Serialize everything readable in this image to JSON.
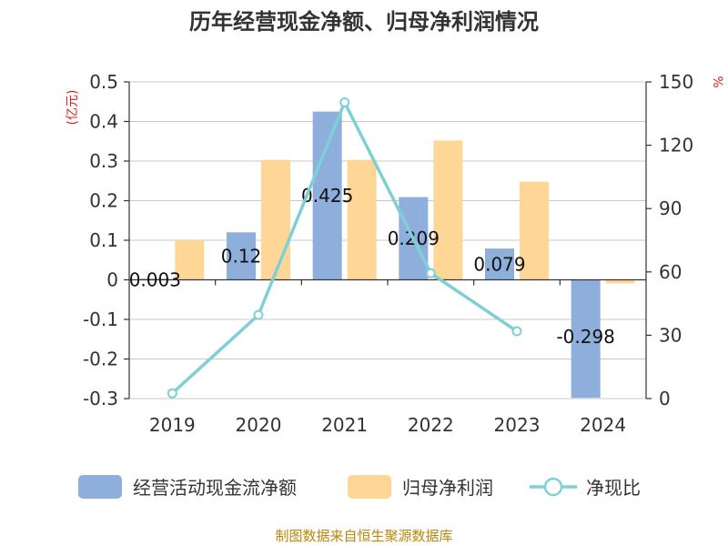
{
  "chart_data": {
    "type": "bar",
    "title": "历年经营现金净额、归母净利润情况",
    "categories": [
      "2019",
      "2020",
      "2021",
      "2022",
      "2023",
      "2024"
    ],
    "left_axis": {
      "unit": "(亿元)",
      "ylim": [
        -0.3,
        0.5
      ],
      "ticks": [
        "0.5",
        "0.4",
        "0.3",
        "0.2",
        "0.1",
        "0",
        "-0.1",
        "-0.2",
        "-0.3"
      ],
      "tick_values": [
        0.5,
        0.4,
        0.3,
        0.2,
        0.1,
        0,
        -0.1,
        -0.2,
        -0.3
      ]
    },
    "right_axis": {
      "unit": "%",
      "ylim": [
        0,
        150
      ],
      "ticks": [
        "150",
        "120",
        "90",
        "60",
        "30",
        "0"
      ],
      "tick_values": [
        150,
        120,
        90,
        60,
        30,
        0
      ]
    },
    "grid": true,
    "legend_position": "bottom",
    "series": [
      {
        "name": "经营活动现金流净额",
        "type": "bar",
        "axis": "left",
        "color": "#8eaedc",
        "values": [
          0.003,
          0.12,
          0.425,
          0.209,
          0.079,
          -0.298
        ],
        "labels": [
          "0.003",
          "0.12",
          "0.425",
          "0.209",
          "0.079",
          "-0.298"
        ]
      },
      {
        "name": "归母净利润",
        "type": "bar",
        "axis": "left",
        "color": "#fed797",
        "values": [
          0.1,
          0.303,
          0.303,
          0.352,
          0.248,
          -0.009
        ]
      },
      {
        "name": "净现比",
        "type": "line",
        "axis": "right",
        "color": "#7fd0d6",
        "values": [
          2.5,
          39.6,
          140.3,
          59.4,
          31.9,
          null
        ]
      }
    ]
  },
  "footer": {
    "source": "制图数据来自恒生聚源数据库"
  }
}
